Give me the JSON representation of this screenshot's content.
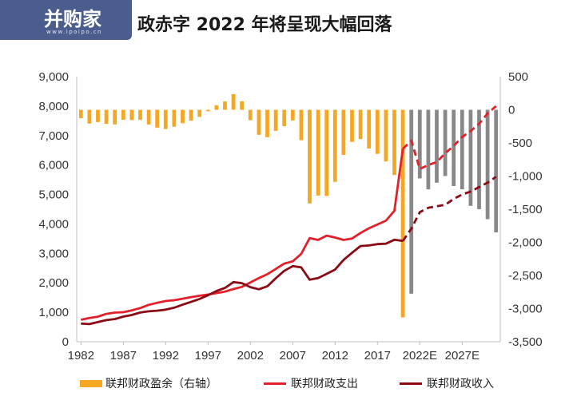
{
  "title": "政赤字 2022 年将呈现大幅回落",
  "logo": {
    "text": "并购家",
    "url": "www.ipoipo.cn"
  },
  "colors": {
    "bar_actual": "#f5a623",
    "bar_projected": "#888888",
    "spending": "#e3202a",
    "revenue": "#8b0a14",
    "axis": "#bfbfbf"
  },
  "chart_data": {
    "type": "bar",
    "x_tick_labels": [
      "1982",
      "1987",
      "1992",
      "1997",
      "2002",
      "2007",
      "2012",
      "2017",
      "2022E",
      "2027E"
    ],
    "y_left": {
      "ylim": [
        0,
        9000
      ],
      "ticks": [
        "0",
        "1,000",
        "2,000",
        "3,000",
        "4,000",
        "5,000",
        "6,000",
        "7,000",
        "8,000",
        "9,000"
      ]
    },
    "y_right": {
      "ylim": [
        -3500,
        500
      ],
      "ticks": [
        "-3,500",
        "-3,000",
        "-2,500",
        "-2,000",
        "-1,500",
        "-1,000",
        "-500",
        "0",
        "500"
      ]
    },
    "years": [
      1982,
      1983,
      1984,
      1985,
      1986,
      1987,
      1988,
      1989,
      1990,
      1991,
      1992,
      1993,
      1994,
      1995,
      1996,
      1997,
      1998,
      1999,
      2000,
      2001,
      2002,
      2003,
      2004,
      2005,
      2006,
      2007,
      2008,
      2009,
      2010,
      2011,
      2012,
      2013,
      2014,
      2015,
      2016,
      2017,
      2018,
      2019,
      2020,
      2021,
      2022,
      2023,
      2024,
      2025,
      2026,
      2027,
      2028,
      2029,
      2030,
      2031
    ],
    "surplus": [
      -128,
      -208,
      -185,
      -212,
      -221,
      -150,
      -155,
      -153,
      -221,
      -269,
      -290,
      -255,
      -203,
      -164,
      -107,
      -22,
      69,
      126,
      236,
      128,
      -158,
      -378,
      -413,
      -318,
      -248,
      -161,
      -459,
      -1413,
      -1294,
      -1300,
      -1087,
      -680,
      -485,
      -442,
      -585,
      -665,
      -779,
      -984,
      -3132,
      -2775,
      -1035,
      -1200,
      -1100,
      -1000,
      -1150,
      -1200,
      -1450,
      -1500,
      -1650,
      -1850
    ],
    "projected_from_year": 2021,
    "series": [
      {
        "name": "联邦财政支出",
        "values": [
          746,
          808,
          852,
          946,
          990,
          1004,
          1065,
          1144,
          1253,
          1324,
          1382,
          1410,
          1462,
          1516,
          1561,
          1601,
          1652,
          1702,
          1789,
          1863,
          2011,
          2160,
          2293,
          2472,
          2655,
          2729,
          2983,
          3518,
          3457,
          3603,
          3537,
          3455,
          3506,
          3692,
          3853,
          3982,
          4109,
          4447,
          6550,
          6820,
          5870,
          6000,
          6100,
          6400,
          6650,
          6950,
          7150,
          7400,
          7750,
          8000
        ]
      },
      {
        "name": "联邦财政收入",
        "values": [
          618,
          600,
          666,
          734,
          769,
          854,
          909,
          991,
          1032,
          1055,
          1091,
          1154,
          1259,
          1352,
          1453,
          1579,
          1722,
          1827,
          2025,
          1991,
          1853,
          1782,
          1880,
          2154,
          2407,
          2568,
          2524,
          2105,
          2163,
          2303,
          2450,
          2775,
          3021,
          3250,
          3268,
          3316,
          3329,
          3463,
          3421,
          3838,
          4400,
          4550,
          4600,
          4650,
          4850,
          5000,
          5100,
          5250,
          5400,
          5600
        ]
      }
    ],
    "projected_from_year_lines": 2021,
    "legend": [
      "联邦财政盈余（右轴）",
      "联邦财政支出",
      "联邦财政收入"
    ],
    "legend_position": "bottom",
    "grid": false
  }
}
